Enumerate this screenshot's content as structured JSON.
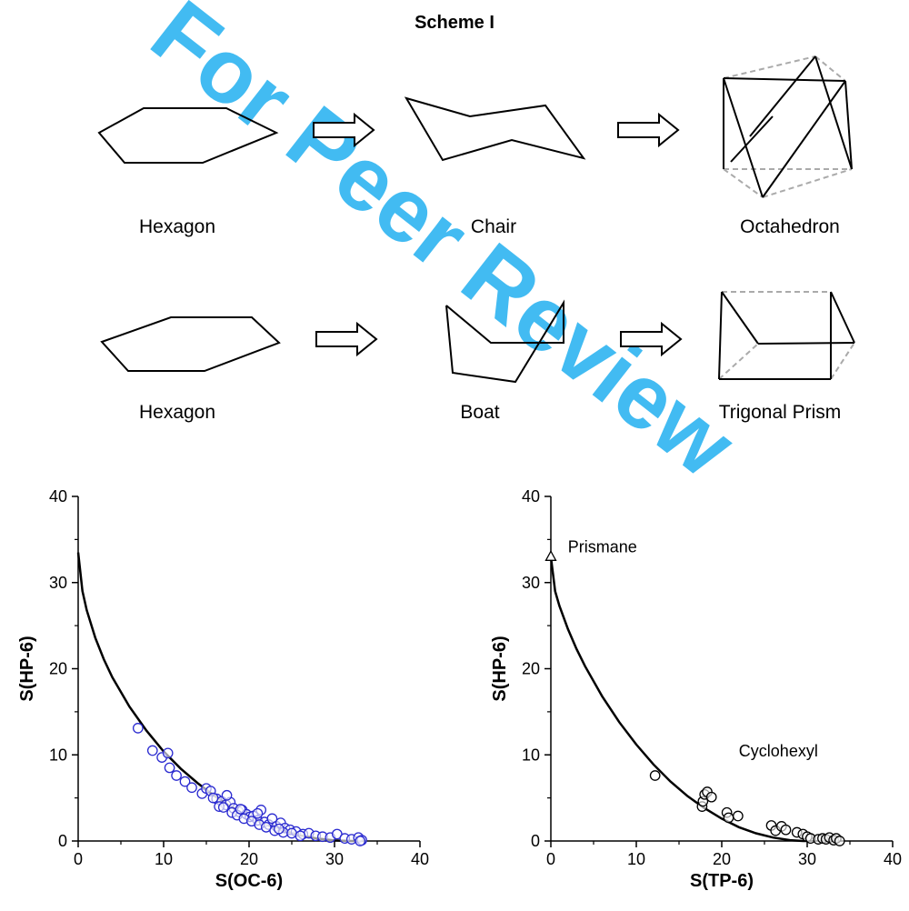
{
  "watermark": {
    "text": "For Peer Review",
    "color": "#22b0f0"
  },
  "scheme": {
    "title": "Scheme I",
    "row1": {
      "start": "Hexagon",
      "middle": "Chair",
      "end": "Octahedron"
    },
    "row2": {
      "start": "Hexagon",
      "middle": "Boat",
      "end": "Trigonal Prism"
    }
  },
  "chart_data": [
    {
      "type": "scatter",
      "xlabel": "S(OC-6)",
      "ylabel": "S(HP-6)",
      "xlim": [
        0,
        40
      ],
      "ylim": [
        0,
        40
      ],
      "xticks": [
        "0",
        "10",
        "20",
        "30",
        "40"
      ],
      "yticks": [
        "0",
        "10",
        "20",
        "30",
        "40"
      ],
      "marker_color": "#2a2ad0",
      "marker_fill": "none",
      "curve": {
        "x": [
          0,
          0.5,
          1,
          2,
          3,
          4,
          6,
          8,
          10,
          12,
          14,
          16,
          18,
          20,
          22,
          24,
          26,
          28,
          30,
          32,
          33.5
        ],
        "y": [
          33.5,
          29.0,
          26.8,
          23.6,
          21.1,
          19.0,
          15.6,
          12.8,
          10.4,
          8.4,
          6.7,
          5.2,
          3.9,
          2.8,
          1.9,
          1.2,
          0.65,
          0.28,
          0.06,
          0.0,
          0.0
        ]
      },
      "points": {
        "x": [
          7,
          8.7,
          9.8,
          10.5,
          10.7,
          11.5,
          12.5,
          13.3,
          14.5,
          15.0,
          15.5,
          16.2,
          16.8,
          17.3,
          17.8,
          18.2,
          18.8,
          19.2,
          19.7,
          20.1,
          20.5,
          21.0,
          21.4,
          21.8,
          22.3,
          22.7,
          23.2,
          23.7,
          24.2,
          24.8,
          25.5,
          26.3,
          27.0,
          27.8,
          28.6,
          29.5,
          30.3,
          31.2,
          32.0,
          32.8,
          33.2,
          33.0,
          15.8,
          16.5,
          17.4,
          18.0,
          18.6,
          19.4,
          20.3,
          21.2,
          22.0,
          23.0,
          24.0,
          25.0,
          26.0,
          17.0,
          19.0,
          21.0,
          23.5
        ],
        "y": [
          13.1,
          10.5,
          9.7,
          10.2,
          8.5,
          7.6,
          6.9,
          6.2,
          5.5,
          6.1,
          5.8,
          4.9,
          4.6,
          4.2,
          4.5,
          3.8,
          3.4,
          3.6,
          3.1,
          2.8,
          2.9,
          2.4,
          3.6,
          2.2,
          1.9,
          2.6,
          1.7,
          2.1,
          1.5,
          1.3,
          1.1,
          0.8,
          0.9,
          0.6,
          0.5,
          0.4,
          0.8,
          0.3,
          0.2,
          0.4,
          0.1,
          0.0,
          5.0,
          4.0,
          5.3,
          3.3,
          3.0,
          2.6,
          2.3,
          1.9,
          1.6,
          1.2,
          1.0,
          0.9,
          0.6,
          3.9,
          3.7,
          3.2,
          1.4
        ]
      }
    },
    {
      "type": "scatter",
      "xlabel": "S(TP-6)",
      "ylabel": "S(HP-6)",
      "xlim": [
        0,
        40
      ],
      "ylim": [
        0,
        40
      ],
      "xticks": [
        "0",
        "10",
        "20",
        "30",
        "40"
      ],
      "yticks": [
        "0",
        "10",
        "20",
        "30",
        "40"
      ],
      "marker_color": "#000000",
      "marker_fill": "none",
      "annotations": [
        {
          "text": "Prismane",
          "x": 2,
          "y": 33.5
        },
        {
          "text": "Cyclohexyl",
          "x": 22,
          "y": 9.8
        }
      ],
      "special_point": {
        "label": "Prismane",
        "marker": "triangle",
        "x": 0,
        "y": 33
      },
      "curve": {
        "x": [
          0,
          0.5,
          1,
          2,
          3,
          4,
          6,
          8,
          10,
          12,
          14,
          16,
          18,
          20,
          22,
          24,
          26,
          28,
          29.5,
          30
        ],
        "y": [
          33,
          29.0,
          27.3,
          24.6,
          22.3,
          20.3,
          16.8,
          13.8,
          11.2,
          8.9,
          6.9,
          5.2,
          3.8,
          2.6,
          1.6,
          0.9,
          0.4,
          0.1,
          0.0,
          0.0
        ]
      },
      "points": {
        "x": [
          12.2,
          17.7,
          17.8,
          18.0,
          18.3,
          18.8,
          20.6,
          20.8,
          21.9,
          25.8,
          26.3,
          27.0,
          27.5,
          28.8,
          29.5,
          30.0,
          30.4,
          31.3,
          31.8,
          32.2,
          32.6,
          33.1,
          33.4,
          33.8
        ],
        "y": [
          7.6,
          4.0,
          4.6,
          5.4,
          5.7,
          5.1,
          3.3,
          2.7,
          2.9,
          1.8,
          1.2,
          1.7,
          1.3,
          1.0,
          0.8,
          0.5,
          0.3,
          0.2,
          0.3,
          0.2,
          0.4,
          0.1,
          0.3,
          0.0
        ]
      }
    }
  ]
}
